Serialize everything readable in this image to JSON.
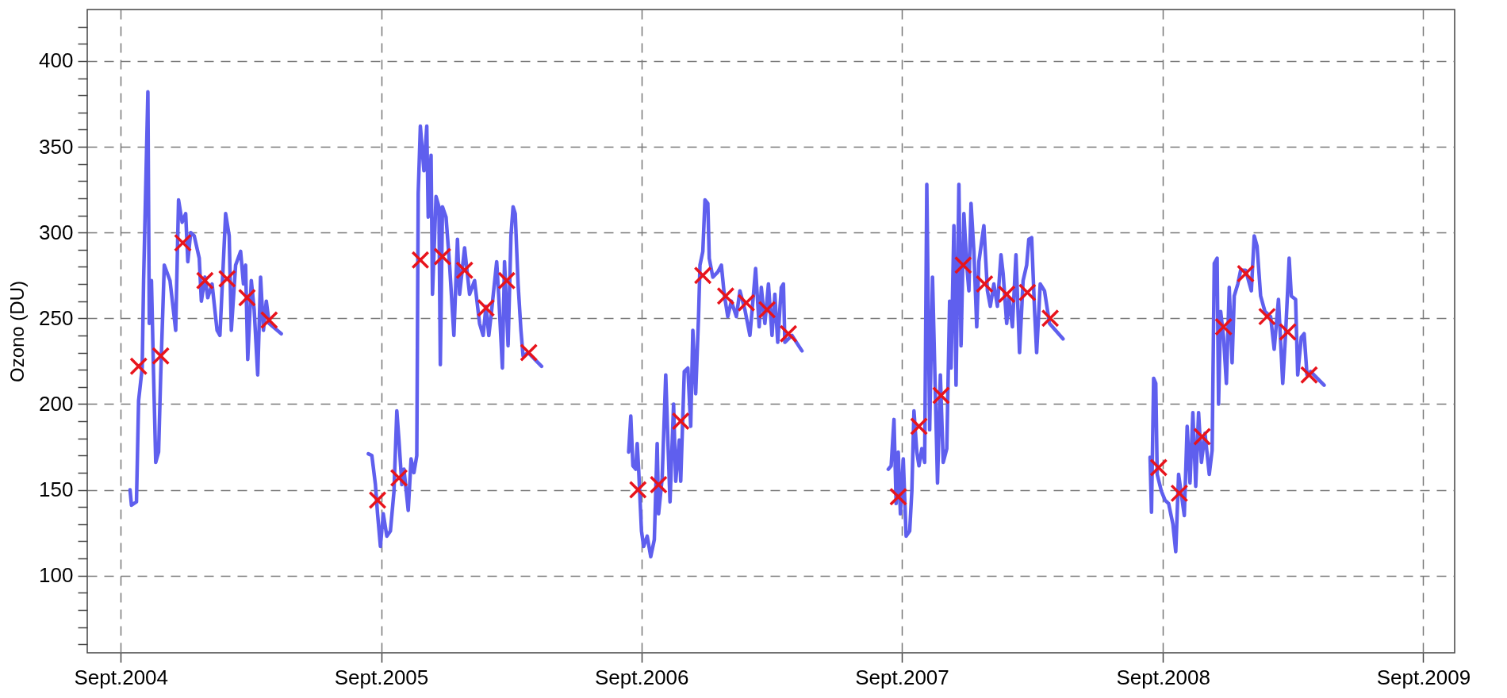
{
  "chart_data": {
    "type": "line",
    "ylabel": "Ozono (DU)",
    "xlim": [
      "2004-07-16",
      "2009-10-15"
    ],
    "ylim": [
      55,
      430
    ],
    "xticks": [
      {
        "value": "2004-09-01",
        "label": "Sept.2004"
      },
      {
        "value": "2005-09-01",
        "label": "Sept.2005"
      },
      {
        "value": "2006-09-01",
        "label": "Sept.2006"
      },
      {
        "value": "2007-09-01",
        "label": "Sept.2007"
      },
      {
        "value": "2008-09-01",
        "label": "Sept.2008"
      },
      {
        "value": "2009-09-01",
        "label": "Sept.2009"
      }
    ],
    "yticks": [
      {
        "value": 60,
        "label": null
      },
      {
        "value": 70,
        "label": null
      },
      {
        "value": 80,
        "label": null
      },
      {
        "value": 90,
        "label": null
      },
      100,
      {
        "value": 110,
        "label": null
      },
      {
        "value": 120,
        "label": null
      },
      {
        "value": 130,
        "label": null
      },
      {
        "value": 140,
        "label": null
      },
      150,
      {
        "value": 160,
        "label": null
      },
      {
        "value": 170,
        "label": null
      },
      {
        "value": 180,
        "label": null
      },
      {
        "value": 190,
        "label": null
      },
      200,
      {
        "value": 210,
        "label": null
      },
      {
        "value": 220,
        "label": null
      },
      {
        "value": 230,
        "label": null
      },
      {
        "value": 240,
        "label": null
      },
      250,
      {
        "value": 260,
        "label": null
      },
      {
        "value": 270,
        "label": null
      },
      {
        "value": 280,
        "label": null
      },
      {
        "value": 290,
        "label": null
      },
      300,
      {
        "value": 310,
        "label": null
      },
      {
        "value": 320,
        "label": null
      },
      {
        "value": 330,
        "label": null
      },
      {
        "value": 340,
        "label": null
      },
      350,
      {
        "value": 360,
        "label": null
      },
      {
        "value": 370,
        "label": null
      },
      {
        "value": 380,
        "label": null
      },
      {
        "value": 390,
        "label": null
      },
      400,
      {
        "value": 410,
        "label": null
      },
      {
        "value": 420,
        "label": null
      }
    ],
    "grid": true,
    "series": [
      {
        "color": "#5f5fee",
        "line_style": "solid",
        "x": [
          "2004-09-14",
          "2004-09-16",
          "2004-09-23",
          "2004-09-26",
          "2004-10-01",
          "2004-10-03",
          "2004-10-07",
          "2004-10-09",
          "2004-10-11",
          "2004-10-14",
          "2004-10-17",
          "2004-10-20",
          "2004-10-24",
          "2004-10-27",
          "2004-11-01",
          "2004-11-09",
          "2004-11-17",
          "2004-11-21",
          "2004-11-26",
          "2004-12-01",
          "2004-12-04",
          "2004-12-08",
          "2004-12-13",
          "2004-12-20",
          "2004-12-23",
          "2004-12-28",
          "2005-01-01",
          "2005-01-07",
          "2005-01-14",
          "2005-01-18",
          "2005-01-26",
          "2005-01-31",
          "2005-02-03",
          "2005-02-09",
          "2005-02-16",
          "2005-02-20",
          "2005-02-23",
          "2005-02-26",
          "2005-03-03",
          "2005-03-07",
          "2005-03-12",
          "2005-03-16",
          "2005-03-20",
          "2005-03-24",
          "2005-03-28",
          "2005-04-14",
          "2005-07-01",
          "2005-08-14",
          "2005-08-19",
          "2005-08-24",
          "2005-08-27",
          "2005-08-31",
          "2005-09-04",
          "2005-09-09",
          "2005-09-14",
          "2005-09-19",
          "2005-09-23",
          "2005-09-26",
          "2005-09-30",
          "2005-10-03",
          "2005-10-09",
          "2005-10-13",
          "2005-10-17",
          "2005-10-21",
          "2005-10-23",
          "2005-10-26",
          "2005-10-31",
          "2005-11-04",
          "2005-11-06",
          "2005-11-10",
          "2005-11-12",
          "2005-11-17",
          "2005-11-21",
          "2005-11-23",
          "2005-11-26",
          "2005-12-01",
          "2005-12-06",
          "2005-12-12",
          "2005-12-17",
          "2005-12-20",
          "2005-12-27",
          "2006-01-03",
          "2006-01-10",
          "2006-01-17",
          "2006-01-22",
          "2006-01-26",
          "2006-01-30",
          "2006-02-03",
          "2006-02-10",
          "2006-02-13",
          "2006-02-18",
          "2006-02-21",
          "2006-02-26",
          "2006-03-02",
          "2006-03-05",
          "2006-03-08",
          "2006-03-12",
          "2006-03-16",
          "2006-03-19",
          "2006-03-26",
          "2006-04-14",
          "2006-07-01",
          "2006-08-14",
          "2006-08-17",
          "2006-08-20",
          "2006-08-24",
          "2006-08-26",
          "2006-08-28",
          "2006-09-01",
          "2006-09-04",
          "2006-09-09",
          "2006-09-14",
          "2006-09-19",
          "2006-09-23",
          "2006-09-25",
          "2006-09-30",
          "2006-10-05",
          "2006-10-08",
          "2006-10-11",
          "2006-10-16",
          "2006-10-19",
          "2006-10-24",
          "2006-10-26",
          "2006-10-31",
          "2006-11-05",
          "2006-11-09",
          "2006-11-12",
          "2006-11-16",
          "2006-11-20",
          "2006-11-22",
          "2006-11-26",
          "2006-11-29",
          "2006-12-03",
          "2006-12-05",
          "2006-12-10",
          "2006-12-17",
          "2006-12-22",
          "2006-12-26",
          "2006-12-31",
          "2007-01-05",
          "2007-01-12",
          "2007-01-17",
          "2007-01-24",
          "2007-01-31",
          "2007-02-05",
          "2007-02-08",
          "2007-02-13",
          "2007-02-16",
          "2007-02-21",
          "2007-02-26",
          "2007-03-03",
          "2007-03-07",
          "2007-03-11",
          "2007-03-16",
          "2007-03-19",
          "2007-03-21",
          "2007-03-31",
          "2007-04-14",
          "2007-07-01",
          "2007-08-13",
          "2007-08-17",
          "2007-08-21",
          "2007-08-24",
          "2007-08-27",
          "2007-08-30",
          "2007-09-03",
          "2007-09-07",
          "2007-09-12",
          "2007-09-15",
          "2007-09-18",
          "2007-09-22",
          "2007-09-25",
          "2007-09-29",
          "2007-10-03",
          "2007-10-06",
          "2007-10-10",
          "2007-10-14",
          "2007-10-18",
          "2007-10-21",
          "2007-10-25",
          "2007-10-29",
          "2007-11-03",
          "2007-11-07",
          "2007-11-09",
          "2007-11-13",
          "2007-11-16",
          "2007-11-20",
          "2007-11-23",
          "2007-11-27",
          "2007-12-01",
          "2007-12-04",
          "2007-12-07",
          "2007-12-11",
          "2007-12-15",
          "2007-12-18",
          "2007-12-25",
          "2007-12-30",
          "2008-01-03",
          "2008-01-08",
          "2008-01-13",
          "2008-01-18",
          "2008-01-21",
          "2008-01-26",
          "2008-01-29",
          "2008-02-03",
          "2008-02-08",
          "2008-02-13",
          "2008-02-18",
          "2008-02-23",
          "2008-02-26",
          "2008-03-01",
          "2008-03-05",
          "2008-03-08",
          "2008-03-13",
          "2008-03-19",
          "2008-03-26",
          "2008-04-14",
          "2008-07-01",
          "2008-08-14",
          "2008-08-16",
          "2008-08-19",
          "2008-08-22",
          "2008-08-24",
          "2008-08-30",
          "2008-09-04",
          "2008-09-09",
          "2008-09-15",
          "2008-09-19",
          "2008-09-23",
          "2008-09-27",
          "2008-10-01",
          "2008-10-05",
          "2008-10-09",
          "2008-10-13",
          "2008-10-17",
          "2008-10-21",
          "2008-10-25",
          "2008-10-30",
          "2008-11-05",
          "2008-11-09",
          "2008-11-12",
          "2008-11-16",
          "2008-11-18",
          "2008-11-21",
          "2008-11-25",
          "2008-11-29",
          "2008-12-03",
          "2008-12-07",
          "2008-12-10",
          "2008-12-15",
          "2008-12-19",
          "2008-12-26",
          "2009-01-03",
          "2009-01-07",
          "2009-01-11",
          "2009-01-16",
          "2009-01-22",
          "2009-01-30",
          "2009-02-04",
          "2009-02-10",
          "2009-02-16",
          "2009-02-20",
          "2009-02-25",
          "2009-02-28",
          "2009-03-06",
          "2009-03-09",
          "2009-03-14",
          "2009-03-18",
          "2009-03-22",
          "2009-03-27",
          "2009-04-15"
        ],
        "values": [
          150,
          141,
          143,
          202,
          221,
          272,
          345,
          382,
          247,
          272,
          217,
          166,
          172,
          217,
          281,
          272,
          243,
          319,
          306,
          311,
          283,
          300,
          298,
          285,
          260,
          274,
          262,
          270,
          243,
          240,
          311,
          298,
          243,
          281,
          289,
          270,
          281,
          226,
          272,
          255,
          217,
          274,
          243,
          260,
          247,
          241,
          null,
          171,
          170,
          153,
          136,
          117,
          136,
          123,
          126,
          149,
          196,
          179,
          153,
          162,
          138,
          168,
          160,
          170,
          323,
          362,
          336,
          362,
          309,
          345,
          264,
          321,
          315,
          223,
          315,
          309,
          281,
          240,
          296,
          264,
          291,
          264,
          272,
          247,
          240,
          257,
          240,
          255,
          283,
          262,
          221,
          283,
          234,
          298,
          315,
          311,
          270,
          243,
          228,
          230,
          222,
          null,
          172,
          193,
          164,
          162,
          177,
          162,
          126,
          117,
          123,
          111,
          121,
          177,
          136,
          157,
          217,
          179,
          143,
          200,
          155,
          179,
          155,
          219,
          221,
          187,
          243,
          206,
          251,
          281,
          289,
          319,
          317,
          285,
          274,
          277,
          281,
          264,
          251,
          260,
          251,
          266,
          255,
          240,
          264,
          279,
          245,
          268,
          247,
          270,
          240,
          264,
          236,
          268,
          270,
          236,
          240,
          231,
          null,
          162,
          164,
          191,
          142,
          172,
          136,
          168,
          123,
          126,
          149,
          196,
          172,
          164,
          174,
          166,
          328,
          185,
          274,
          206,
          154,
          217,
          166,
          174,
          260,
          221,
          304,
          211,
          328,
          234,
          311,
          281,
          266,
          317,
          289,
          245,
          283,
          304,
          266,
          257,
          270,
          257,
          287,
          276,
          247,
          262,
          245,
          287,
          230,
          272,
          281,
          296,
          297,
          255,
          230,
          270,
          266,
          247,
          238,
          null,
          169,
          137,
          215,
          212,
          159,
          149,
          144,
          142,
          130,
          114,
          159,
          147,
          135,
          187,
          154,
          195,
          152,
          195,
          166,
          183,
          159,
          173,
          282,
          285,
          200,
          254,
          239,
          212,
          268,
          224,
          263,
          270,
          278,
          278,
          266,
          298,
          292,
          263,
          254,
          251,
          232,
          261,
          212,
          241,
          285,
          263,
          261,
          217,
          239,
          241,
          217,
          219,
          211
        ]
      },
      {
        "type": "scatter",
        "color": "#e8141c",
        "marker": "cross",
        "x": [
          "2004-09-26",
          "2004-10-27",
          "2004-11-27",
          "2004-12-28",
          "2005-01-28",
          "2005-02-25",
          "2005-03-28",
          "2005-08-27",
          "2005-09-26",
          "2005-10-26",
          "2005-11-26",
          "2005-12-27",
          "2006-01-26",
          "2006-02-24",
          "2006-03-27",
          "2006-08-27",
          "2006-09-25",
          "2006-10-26",
          "2006-11-26",
          "2006-12-28",
          "2007-01-26",
          "2007-02-24",
          "2007-03-26",
          "2007-08-27",
          "2007-09-25",
          "2007-10-26",
          "2007-11-26",
          "2007-12-26",
          "2008-01-26",
          "2008-02-24",
          "2008-03-27",
          "2008-08-26",
          "2008-09-24",
          "2008-10-26",
          "2008-11-25",
          "2008-12-26",
          "2009-01-25",
          "2009-02-23",
          "2009-03-25"
        ],
        "values": [
          222,
          228,
          294,
          272,
          273,
          262,
          249,
          144,
          157,
          284,
          286,
          278,
          256,
          272,
          230,
          150,
          153,
          190,
          275,
          263,
          259,
          255,
          241,
          146,
          187,
          205,
          281,
          270,
          264,
          265,
          250,
          163,
          148,
          181,
          245,
          276,
          251,
          242,
          217
        ]
      }
    ]
  }
}
